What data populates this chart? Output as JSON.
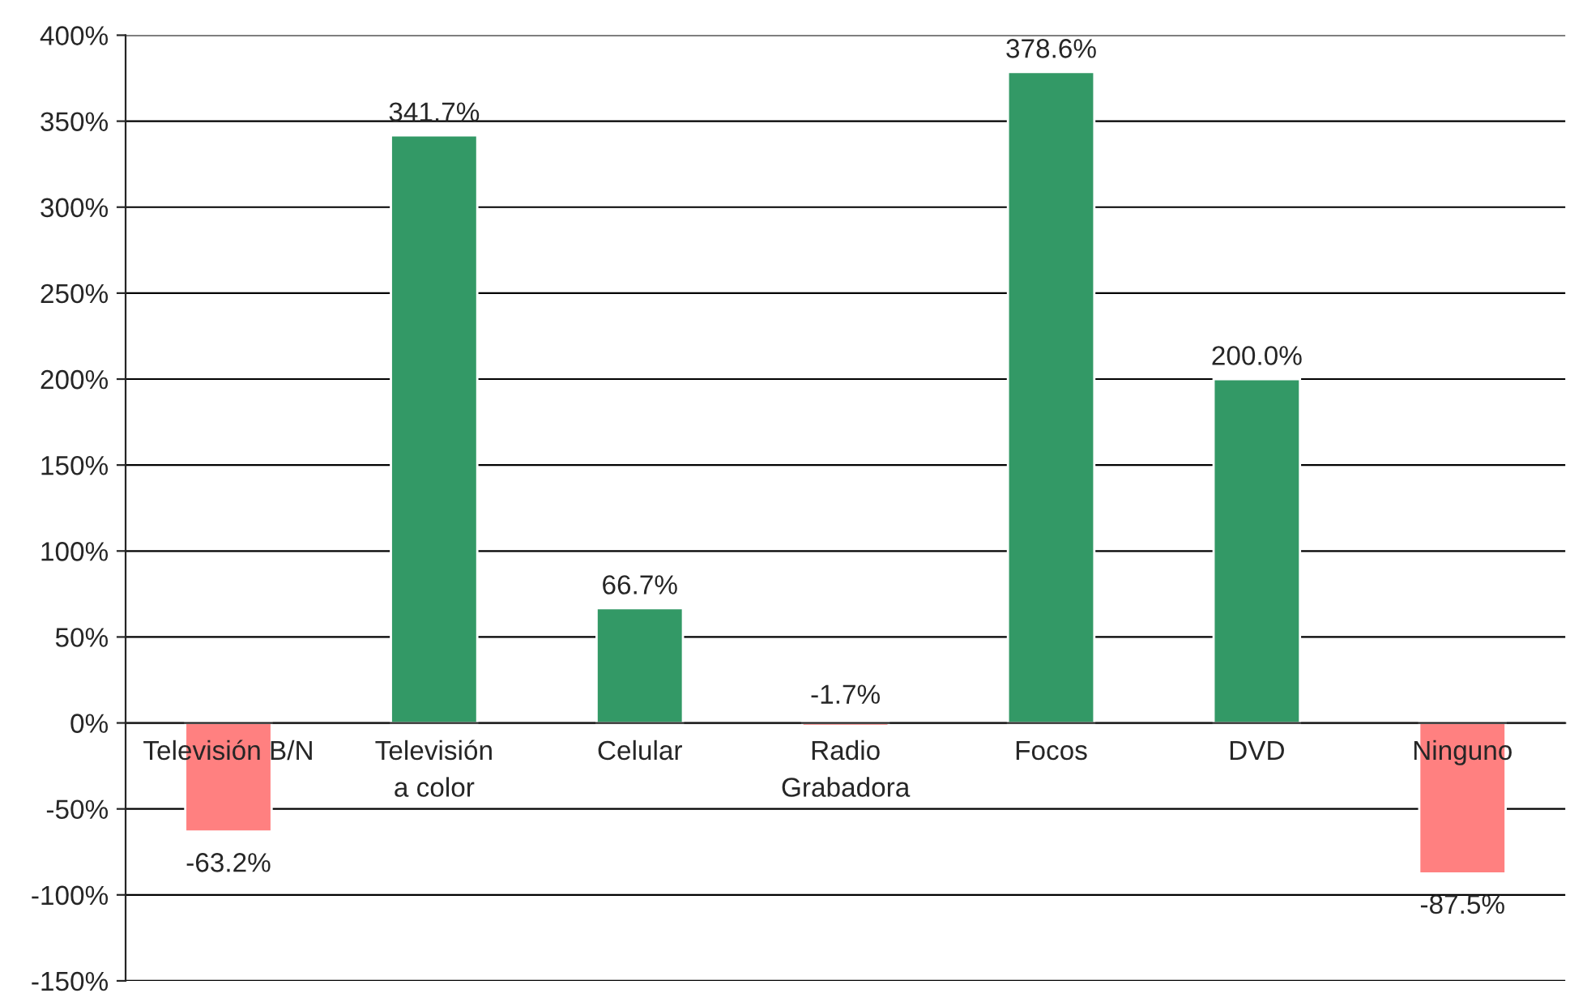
{
  "chart_data": {
    "type": "bar",
    "categories": [
      "Televisión B/N",
      "Televisión a color",
      "Celular",
      "Radio Grabadora",
      "Focos",
      "DVD",
      "Ninguno"
    ],
    "values": [
      -63.2,
      341.7,
      66.7,
      -1.7,
      378.6,
      200.0,
      -87.5
    ],
    "colors": [
      "#ff8080",
      "#339966",
      "#339966",
      "#ff8080",
      "#339966",
      "#339966",
      "#ff8080"
    ],
    "value_labels": [
      "-63.2%",
      "341.7%",
      "66.7%",
      "-1.7%",
      "378.6%",
      "200.0%",
      "-87.5%"
    ],
    "ylim": [
      -150,
      400
    ],
    "yticks": [
      {
        "value": -150,
        "label": "-150%"
      },
      {
        "value": -100,
        "label": "-100%"
      },
      {
        "value": -50,
        "label": "-50%"
      },
      {
        "value": 0,
        "label": "0%"
      },
      {
        "value": 50,
        "label": "50%"
      },
      {
        "value": 100,
        "label": "100%"
      },
      {
        "value": 150,
        "label": "150%"
      },
      {
        "value": 200,
        "label": "200%"
      },
      {
        "value": 250,
        "label": "250%"
      },
      {
        "value": 300,
        "label": "300%"
      },
      {
        "value": 350,
        "label": "350%"
      },
      {
        "value": 400,
        "label": "400%"
      }
    ],
    "grid": "y",
    "legend": false
  }
}
